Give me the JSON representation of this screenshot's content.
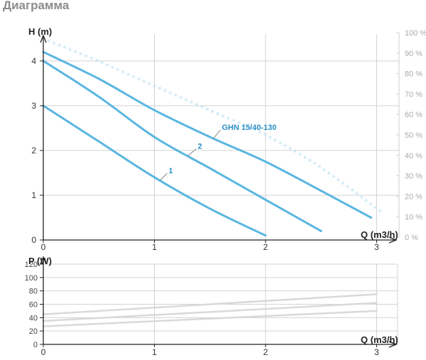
{
  "page": {
    "title": "Диаграмма"
  },
  "colors": {
    "curve": "#5ab6e0",
    "efficiency": "#b9dff2",
    "power": "#d9d9d9",
    "grid": "#d3d3d3",
    "axis": "#222222"
  },
  "chart_data": [
    {
      "type": "line",
      "title": "",
      "ylabel": "H (m)",
      "xlabel": "Q (m3/h)",
      "xlim": [
        0,
        3.2
      ],
      "ylim": [
        0,
        4.6
      ],
      "x_ticks": [
        "0",
        "1",
        "2",
        "3"
      ],
      "y_ticks": [
        "0",
        "1",
        "2",
        "3",
        "4"
      ],
      "grid": true,
      "series": [
        {
          "name": "1",
          "x": [
            0,
            0.5,
            1.0,
            1.5,
            2.0
          ],
          "y": [
            3.0,
            2.2,
            1.4,
            0.7,
            0.1
          ]
        },
        {
          "name": "2",
          "x": [
            0,
            0.5,
            1.0,
            1.5,
            2.0,
            2.5
          ],
          "y": [
            4.0,
            3.2,
            2.3,
            1.6,
            0.9,
            0.2
          ]
        },
        {
          "name": "GHN 15/40-130",
          "x": [
            0,
            0.5,
            1.0,
            1.5,
            2.0,
            2.5,
            2.95
          ],
          "y": [
            4.2,
            3.6,
            2.9,
            2.3,
            1.75,
            1.1,
            0.5
          ]
        }
      ],
      "secondary_axis": {
        "ylim": [
          0,
          100
        ],
        "ticks": [
          "0 %",
          "10 %",
          "20 %",
          "30 %",
          "40 %",
          "50 %",
          "60 %",
          "70 %",
          "80 %",
          "90 %",
          "100 %"
        ],
        "efficiency_curve": {
          "x": [
            0,
            0.5,
            1.0,
            1.5,
            2.0,
            2.5,
            3.05
          ],
          "y": [
            97,
            86,
            74,
            62,
            50,
            34,
            12
          ]
        }
      }
    },
    {
      "type": "line",
      "title": "",
      "ylabel": "P (W)",
      "xlabel": "Q (m3/h)",
      "xlim": [
        0,
        3.2
      ],
      "ylim": [
        0,
        120
      ],
      "x_ticks": [
        "0",
        "1",
        "2",
        "3"
      ],
      "y_ticks": [
        "0",
        "20",
        "40",
        "60",
        "80",
        "100",
        "120"
      ],
      "grid": true,
      "series": [
        {
          "name": "",
          "x": [
            0,
            3.0
          ],
          "y": [
            27,
            50
          ]
        },
        {
          "name": "",
          "x": [
            0,
            3.0
          ],
          "y": [
            35,
            62
          ]
        },
        {
          "name": "",
          "x": [
            0,
            3.0
          ],
          "y": [
            45,
            75
          ]
        }
      ]
    }
  ]
}
